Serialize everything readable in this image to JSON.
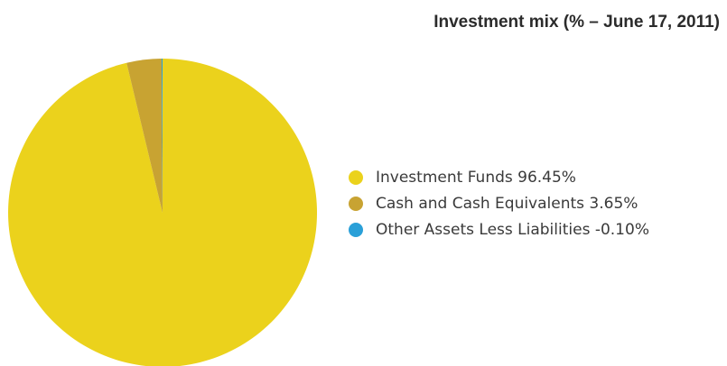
{
  "chart_data": {
    "type": "pie",
    "title": "Investment mix (% – June 17, 2011)",
    "slices": [
      {
        "label": "Investment Funds 96.45%",
        "value": 96.45,
        "color": "#ebd21c"
      },
      {
        "label": "Cash and Cash Equivalents 3.65%",
        "value": 3.65,
        "color": "#c8a332"
      },
      {
        "label": "Other Assets Less Liabilities -0.10%",
        "value": -0.1,
        "color": "#2aa0d8"
      }
    ],
    "legend_position": "right"
  }
}
